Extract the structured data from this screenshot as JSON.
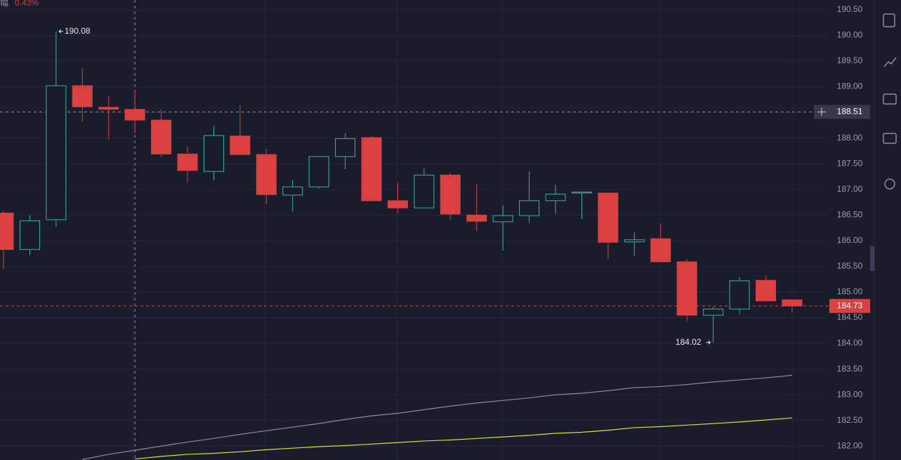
{
  "chart_data": {
    "type": "candlestick",
    "amplitude": {
      "label": "振幅",
      "text": "0.43%"
    },
    "categories": [
      null,
      null,
      null,
      null,
      null,
      null,
      null,
      null,
      null,
      null,
      null,
      null,
      null,
      null,
      null,
      null,
      null,
      null,
      null,
      null,
      null,
      null,
      null,
      null,
      null,
      null,
      null,
      null,
      null,
      null,
      null
    ],
    "open": [
      186.54,
      185.83,
      186.41,
      189.02,
      188.6,
      188.56,
      188.35,
      187.69,
      187.35,
      188.04,
      187.68,
      186.89,
      187.05,
      187.64,
      188.01,
      186.78,
      186.64,
      187.28,
      186.5,
      186.37,
      186.49,
      186.78,
      186.93,
      186.93,
      185.98,
      186.04,
      185.59,
      184.55,
      184.67,
      185.23,
      184.85
    ],
    "high": [
      186.59,
      186.5,
      190.08,
      189.36,
      188.82,
      188.91,
      188.56,
      187.84,
      188.24,
      188.64,
      187.79,
      187.19,
      187.64,
      188.1,
      188.04,
      187.13,
      187.42,
      187.32,
      187.11,
      186.69,
      187.35,
      187.09,
      186.96,
      186.93,
      186.17,
      186.34,
      185.64,
      184.72,
      185.29,
      185.33,
      184.85
    ],
    "low": [
      185.45,
      185.72,
      186.27,
      188.32,
      187.97,
      188.09,
      187.63,
      187.13,
      187.17,
      187.68,
      186.71,
      186.57,
      187.02,
      187.39,
      186.78,
      186.53,
      186.64,
      186.41,
      186.19,
      185.81,
      186.35,
      186.52,
      186.42,
      185.65,
      185.71,
      185.59,
      184.44,
      184.02,
      184.57,
      184.83,
      184.6
    ],
    "close": [
      185.83,
      186.39,
      189.02,
      188.61,
      188.56,
      188.35,
      187.69,
      187.37,
      188.05,
      187.68,
      186.9,
      187.05,
      187.64,
      187.99,
      186.78,
      186.64,
      187.28,
      186.52,
      186.38,
      186.49,
      186.78,
      186.91,
      186.95,
      185.97,
      186.02,
      185.59,
      184.55,
      184.67,
      185.22,
      184.83,
      184.73
    ],
    "up_color": "#35b3a1",
    "down_color": "#d9403f",
    "overlays": [
      {
        "color": "#8a8d9b",
        "values": [
          null,
          null,
          null,
          181.74,
          181.84,
          181.92,
          182.0,
          182.08,
          182.15,
          182.23,
          182.3,
          182.37,
          182.44,
          182.52,
          182.59,
          182.64,
          182.71,
          182.78,
          182.84,
          182.89,
          182.94,
          183.0,
          183.03,
          183.08,
          183.14,
          183.16,
          183.2,
          183.25,
          183.29,
          183.33,
          183.38
        ]
      },
      {
        "color": "#e6dc2a",
        "values": [
          null,
          null,
          null,
          null,
          null,
          181.75,
          181.8,
          181.84,
          181.86,
          181.89,
          181.93,
          181.96,
          181.99,
          182.01,
          182.04,
          182.07,
          182.1,
          182.12,
          182.15,
          182.18,
          182.21,
          182.25,
          182.27,
          182.31,
          182.36,
          182.38,
          182.41,
          182.44,
          182.47,
          182.51,
          182.55
        ]
      }
    ],
    "ylim": [
      181.73,
      190.69
    ],
    "yticks": [
      {
        "value": 190.5,
        "label": "190.50"
      },
      {
        "value": 190,
        "label": "190.00"
      },
      {
        "value": 189.5,
        "label": "189.50"
      },
      {
        "value": 189,
        "label": "189.00"
      },
      {
        "value": 188.5,
        "label": "188.50"
      },
      {
        "value": 188,
        "label": "188.00"
      },
      {
        "value": 187.5,
        "label": "187.50"
      },
      {
        "value": 187,
        "label": "187.00"
      },
      {
        "value": 186.5,
        "label": "186.50"
      },
      {
        "value": 186,
        "label": "186.00"
      },
      {
        "value": 185.5,
        "label": "185.50"
      },
      {
        "value": 185,
        "label": "185.00"
      },
      {
        "value": 184.5,
        "label": "184.50"
      },
      {
        "value": 184,
        "label": "184.00"
      },
      {
        "value": 183.5,
        "label": "183.50"
      },
      {
        "value": 183,
        "label": "183.00"
      },
      {
        "value": 182.5,
        "label": "182.50"
      },
      {
        "value": 182,
        "label": "182.00"
      }
    ],
    "grid": true,
    "max_marker": 190.08,
    "min_marker": 184.02,
    "crosshair_price": 188.51,
    "last_price": 184.73
  }
}
